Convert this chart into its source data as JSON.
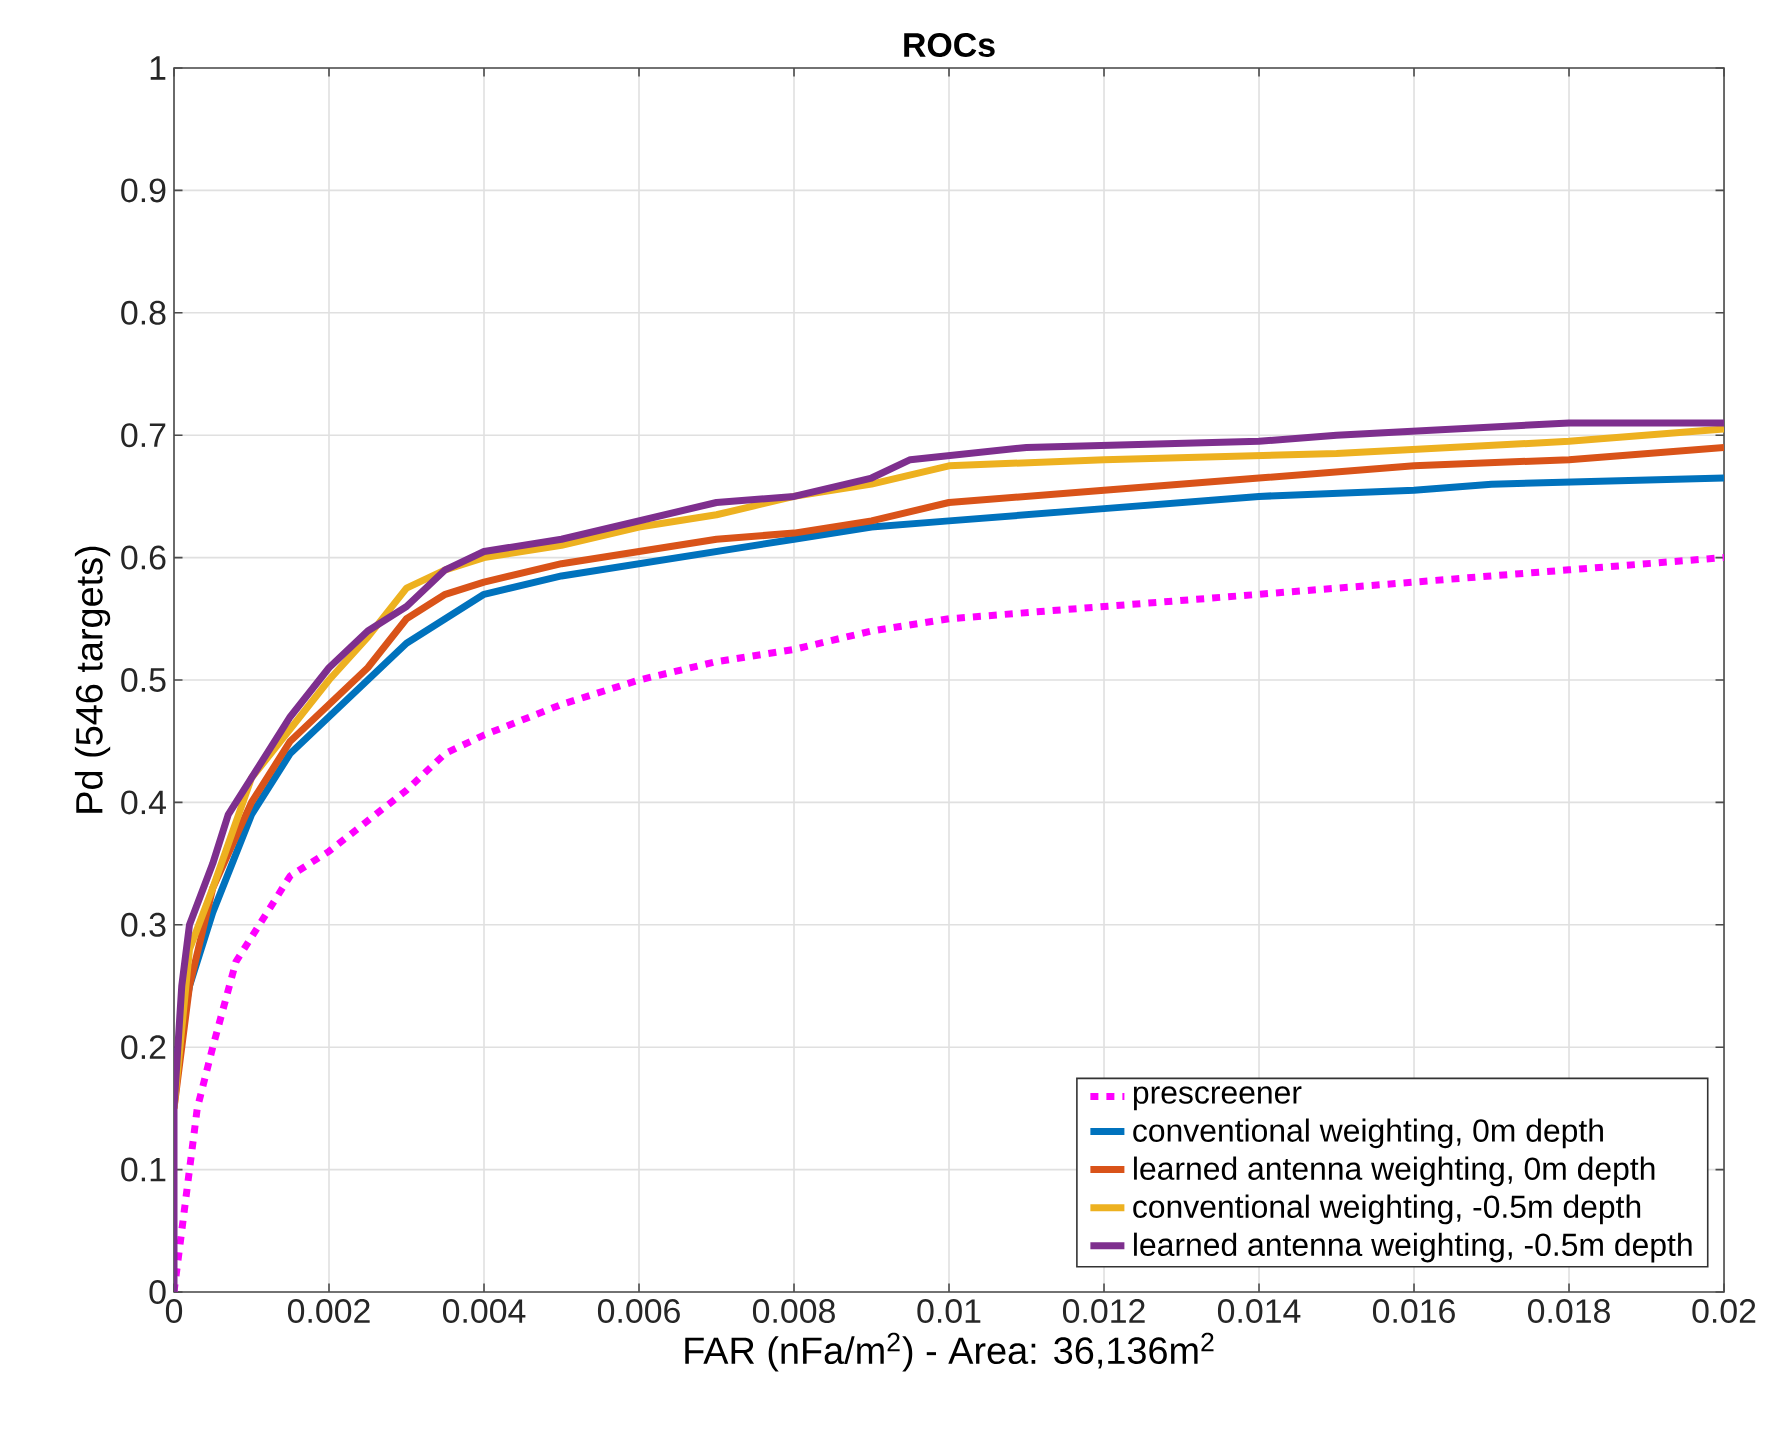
{
  "chart_data": {
    "type": "line",
    "title": "ROCs",
    "xlabel": "FAR (nFa/m$^{2}$) - Area: 36,136m$^{2}$",
    "ylabel": "Pd (546 targets)",
    "xlim": [
      0,
      0.02
    ],
    "ylim": [
      0,
      1
    ],
    "xticks": [
      0,
      0.002,
      0.004,
      0.006,
      0.008,
      0.01,
      0.012,
      0.014,
      0.016,
      0.018,
      0.02
    ],
    "yticks": [
      0,
      0.1,
      0.2,
      0.3,
      0.4,
      0.5,
      0.6,
      0.7,
      0.8,
      0.9,
      1
    ],
    "grid": true,
    "legend": "bottom right",
    "marker": "none",
    "series": [
      {
        "name": "prescreener",
        "color": "#ff00ff",
        "line_style": "dotted",
        "x": [
          0,
          0.0001,
          0.0002,
          0.0003,
          0.0005,
          0.0008,
          0.0012,
          0.0015,
          0.002,
          0.0025,
          0.003,
          0.0035,
          0.004,
          0.005,
          0.006,
          0.007,
          0.008,
          0.009,
          0.01,
          0.012,
          0.014,
          0.016,
          0.018,
          0.02
        ],
        "values": [
          0,
          0.05,
          0.1,
          0.15,
          0.2,
          0.27,
          0.31,
          0.34,
          0.36,
          0.385,
          0.41,
          0.44,
          0.455,
          0.48,
          0.5,
          0.515,
          0.525,
          0.54,
          0.55,
          0.56,
          0.57,
          0.58,
          0.59,
          0.6
        ]
      },
      {
        "name": "conventional weighting, 0m depth",
        "color": "#0072bd",
        "line_style": "solid",
        "x": [
          0,
          0.0002,
          0.0005,
          0.001,
          0.0015,
          0.002,
          0.0025,
          0.003,
          0.0035,
          0.004,
          0.005,
          0.006,
          0.007,
          0.008,
          0.009,
          0.01,
          0.012,
          0.014,
          0.016,
          0.017,
          0.02
        ],
        "values": [
          0.18,
          0.25,
          0.31,
          0.39,
          0.44,
          0.47,
          0.5,
          0.53,
          0.55,
          0.57,
          0.585,
          0.595,
          0.605,
          0.615,
          0.625,
          0.63,
          0.64,
          0.65,
          0.655,
          0.66,
          0.665
        ]
      },
      {
        "name": "learned antenna weighting, 0m depth",
        "color": "#d95319",
        "line_style": "solid",
        "x": [
          0,
          0.0002,
          0.0005,
          0.001,
          0.0015,
          0.002,
          0.0025,
          0.003,
          0.0035,
          0.004,
          0.005,
          0.006,
          0.007,
          0.008,
          0.009,
          0.01,
          0.012,
          0.014,
          0.016,
          0.018,
          0.02
        ],
        "values": [
          0.15,
          0.25,
          0.33,
          0.4,
          0.45,
          0.48,
          0.51,
          0.55,
          0.57,
          0.58,
          0.595,
          0.605,
          0.615,
          0.62,
          0.63,
          0.645,
          0.655,
          0.665,
          0.675,
          0.68,
          0.69
        ]
      },
      {
        "name": "conventional weighting, -0.5m depth",
        "color": "#edb120",
        "line_style": "solid",
        "x": [
          0,
          0.0002,
          0.0005,
          0.001,
          0.0015,
          0.002,
          0.0025,
          0.003,
          0.0035,
          0.004,
          0.005,
          0.006,
          0.007,
          0.008,
          0.009,
          0.01,
          0.012,
          0.015,
          0.018,
          0.02
        ],
        "values": [
          0.15,
          0.28,
          0.33,
          0.42,
          0.46,
          0.5,
          0.535,
          0.575,
          0.59,
          0.6,
          0.61,
          0.625,
          0.635,
          0.65,
          0.66,
          0.675,
          0.68,
          0.685,
          0.695,
          0.705
        ]
      },
      {
        "name": "learned antenna weighting, -0.5m depth",
        "color": "#7e2f8e",
        "line_style": "solid",
        "x": [
          0,
          0,
          0.0001,
          0.0002,
          0.0005,
          0.0007,
          0.001,
          0.0015,
          0.002,
          0.0025,
          0.003,
          0.0035,
          0.004,
          0.005,
          0.006,
          0.007,
          0.008,
          0.009,
          0.0095,
          0.011,
          0.014,
          0.015,
          0.018,
          0.02
        ],
        "values": [
          0,
          0.15,
          0.25,
          0.3,
          0.35,
          0.39,
          0.42,
          0.47,
          0.51,
          0.54,
          0.56,
          0.59,
          0.605,
          0.615,
          0.63,
          0.645,
          0.65,
          0.665,
          0.68,
          0.69,
          0.695,
          0.7,
          0.71,
          0.71
        ]
      }
    ]
  }
}
